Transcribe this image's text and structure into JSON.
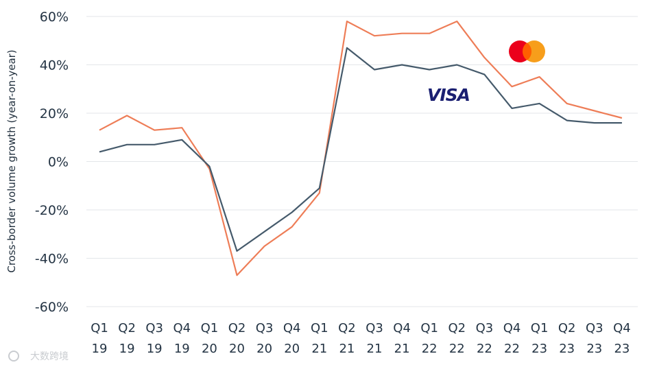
{
  "chart_data": {
    "type": "line",
    "ylabel": "Cross-border volume growth (year-on-year)",
    "ylim": [
      -60,
      60
    ],
    "y_ticks": [
      "60%",
      "40%",
      "20%",
      "0%",
      "-20%",
      "-40%",
      "-60%"
    ],
    "y_tick_values": [
      60,
      40,
      20,
      0,
      -20,
      -40,
      -60
    ],
    "categories": [
      {
        "q": "Q1",
        "y": "19"
      },
      {
        "q": "Q2",
        "y": "19"
      },
      {
        "q": "Q3",
        "y": "19"
      },
      {
        "q": "Q4",
        "y": "19"
      },
      {
        "q": "Q1",
        "y": "20"
      },
      {
        "q": "Q2",
        "y": "20"
      },
      {
        "q": "Q3",
        "y": "20"
      },
      {
        "q": "Q4",
        "y": "20"
      },
      {
        "q": "Q1",
        "y": "21"
      },
      {
        "q": "Q2",
        "y": "21"
      },
      {
        "q": "Q3",
        "y": "21"
      },
      {
        "q": "Q4",
        "y": "21"
      },
      {
        "q": "Q1",
        "y": "22"
      },
      {
        "q": "Q2",
        "y": "22"
      },
      {
        "q": "Q3",
        "y": "22"
      },
      {
        "q": "Q4",
        "y": "22"
      },
      {
        "q": "Q1",
        "y": "23"
      },
      {
        "q": "Q2",
        "y": "23"
      },
      {
        "q": "Q3",
        "y": "23"
      },
      {
        "q": "Q4",
        "y": "23"
      }
    ],
    "series": [
      {
        "key": "mastercard",
        "color": "#ee7d57",
        "values": [
          13,
          19,
          13,
          14,
          -3,
          -47,
          -35,
          -27,
          -13,
          58,
          52,
          53,
          53,
          58,
          43,
          31,
          35,
          24,
          21,
          18
        ]
      },
      {
        "key": "visa",
        "color": "#455a6b",
        "values": [
          4,
          7,
          7,
          9,
          -2,
          -37,
          -29,
          -21,
          -11,
          47,
          38,
          40,
          38,
          40,
          36,
          22,
          24,
          17,
          16,
          16
        ]
      }
    ],
    "grid": true,
    "legend": "logos near lines (top-right)"
  },
  "logos": {
    "visa": {
      "text": "VISA",
      "color": "#1a1f71"
    },
    "mastercard": {
      "colors": {
        "left": "#eb001b",
        "right": "#f79e1b",
        "overlap": "#ff5f00"
      }
    }
  },
  "watermark": {
    "text": "大数跨境"
  },
  "colors": {
    "text": "#243444",
    "grid": "#e3e6e9",
    "background": "#ffffff"
  }
}
